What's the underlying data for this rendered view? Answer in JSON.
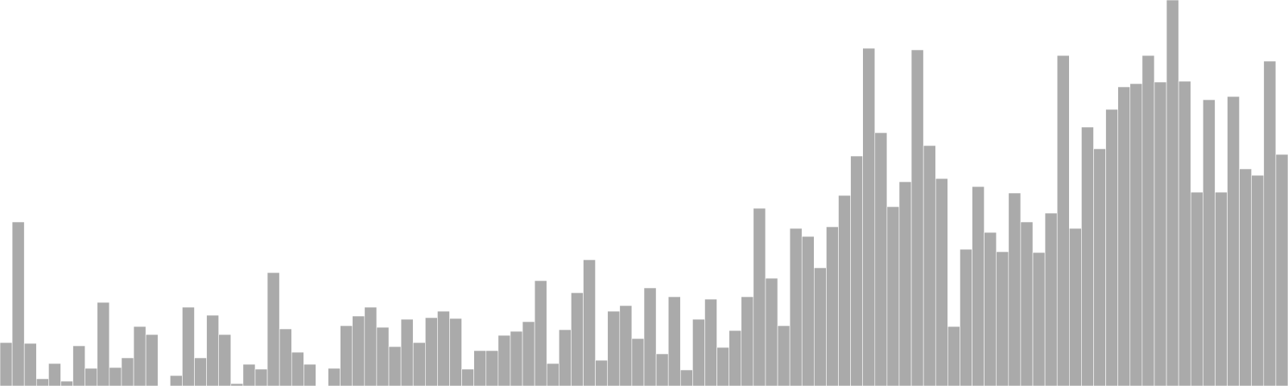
{
  "colors": {
    "bar_fill": "#aaaaaa",
    "bar_stroke": "#ffffff",
    "background": "#ffffff"
  },
  "chart_data": {
    "type": "bar",
    "title": "",
    "xlabel": "",
    "ylabel": "",
    "grid": false,
    "axes_visible": false,
    "ylim": [
      0,
      480
    ],
    "values": [
      54,
      204,
      53,
      9,
      28,
      6,
      50,
      22,
      104,
      23,
      35,
      74,
      64,
      0,
      13,
      98,
      35,
      88,
      64,
      3,
      27,
      21,
      141,
      71,
      42,
      27,
      0,
      22,
      75,
      87,
      98,
      73,
      49,
      83,
      54,
      85,
      93,
      84,
      21,
      44,
      44,
      63,
      68,
      80,
      131,
      28,
      70,
      116,
      157,
      32,
      93,
      100,
      59,
      122,
      40,
      111,
      20,
      83,
      108,
      48,
      69,
      111,
      221,
      134,
      75,
      196,
      186,
      147,
      198,
      237,
      286,
      420,
      315,
      223,
      254,
      418,
      299,
      258,
      74,
      170,
      248,
      191,
      167,
      240,
      204,
      166,
      215,
      411,
      196,
      322,
      295,
      344,
      372,
      376,
      411,
      378,
      480,
      379,
      241,
      356,
      241,
      360,
      270,
      262,
      404,
      288
    ]
  }
}
